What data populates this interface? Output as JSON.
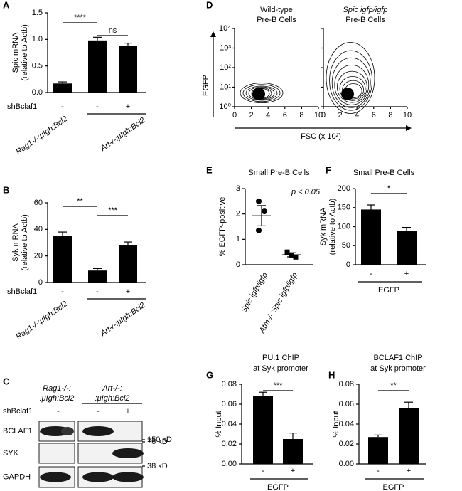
{
  "chart_data": [
    {
      "type": "bar",
      "panel": "A",
      "ylabel": [
        "Spic mRNA",
        "(relative to Actb)"
      ],
      "categories": [
        "-",
        "-",
        "+"
      ],
      "row_label": "shBclaf1",
      "groups": [
        "Rag1-/-:μIgh:Bcl2",
        "Art-/-:μIgh:Bcl2"
      ],
      "values": [
        0.17,
        0.98,
        0.88
      ],
      "errors": [
        0.03,
        0.06,
        0.05
      ],
      "color": "#000000",
      "ylim": [
        0,
        1.5
      ],
      "yticks": [
        {
          "value": 0,
          "label": "0.0"
        },
        {
          "value": 0.5,
          "label": "0.5"
        },
        {
          "value": 1,
          "label": "1.0"
        },
        {
          "value": 1.5,
          "label": "1.5"
        }
      ],
      "annotations": [
        "****",
        "ns"
      ]
    },
    {
      "type": "bar",
      "panel": "B",
      "ylabel": [
        "Syk mRNA",
        "(relative to Actb)"
      ],
      "categories": [
        "-",
        "-",
        "+"
      ],
      "row_label": "shBclaf1",
      "groups": [
        "Rag1-/-:μIgh:Bcl2",
        "Art-/-:μIgh:Bcl2"
      ],
      "values": [
        35,
        9,
        28
      ],
      "errors": [
        3,
        1.5,
        2.5
      ],
      "color": "#000000",
      "ylim": [
        0,
        60
      ],
      "yticks": [
        0,
        20,
        40,
        60
      ],
      "annotations": [
        "**",
        "***"
      ]
    },
    {
      "type": "contour",
      "panel": "D",
      "titles": [
        [
          "Wild-type",
          "Pre-B Cells"
        ],
        [
          "Spic igfp/igfp",
          "Pre-B Cells"
        ]
      ],
      "xlabel": "FSC (x 10²)",
      "ylabel": "EGFP",
      "xlim": [
        0,
        10
      ],
      "xticks": [
        0,
        2,
        4,
        6,
        8,
        10
      ],
      "log": true,
      "ylim": [
        1,
        10000
      ],
      "yticks": [
        {
          "value": 1,
          "label": "10⁰"
        },
        {
          "value": 10,
          "label": "10¹"
        },
        {
          "value": 100,
          "label": "10²"
        },
        {
          "value": 1000,
          "label": "10³"
        },
        {
          "value": 10000,
          "label": "10⁴"
        }
      ]
    },
    {
      "type": "dot",
      "panel": "E",
      "title": "Small Pre-B Cells",
      "annotation": "p < 0.05",
      "ylabel": [
        "% EGFP-positive"
      ],
      "categories": [
        "Spic igfp/igfp",
        "Atm-/-:Spic igfp/igfp"
      ],
      "points": [
        [
          2.5,
          2.1,
          1.35
        ],
        [
          0.5,
          0.3,
          0.38
        ]
      ],
      "means": [
        1.93,
        0.39
      ],
      "errors": [
        0.4,
        0.08
      ],
      "color": "#000000",
      "ylim": [
        0,
        3
      ],
      "yticks": [
        0,
        1,
        2,
        3
      ]
    },
    {
      "type": "bar",
      "panel": "F",
      "title": "Small Pre-B Cells",
      "ylabel": [
        "Syk mRNA",
        "(relative to Actb)"
      ],
      "categories": [
        "-",
        "+"
      ],
      "xlabel": "EGFP",
      "values": [
        145,
        88
      ],
      "errors": [
        12,
        10
      ],
      "color": "#000000",
      "ylim": [
        0,
        200
      ],
      "yticks": [
        0,
        50,
        100,
        150,
        200
      ],
      "annotations": [
        "*"
      ]
    },
    {
      "type": "bar",
      "panel": "G",
      "title": [
        "PU.1 ChIP",
        "at Syk promoter"
      ],
      "ylabel": [
        "% Input"
      ],
      "categories": [
        "-",
        "+"
      ],
      "xlabel": "EGFP",
      "values": [
        0.068,
        0.025
      ],
      "errors": [
        0.004,
        0.006
      ],
      "color": "#000000",
      "ylim": [
        0,
        0.08
      ],
      "yticks": [
        {
          "value": 0,
          "label": "0.00"
        },
        {
          "value": 0.02,
          "label": "0.02"
        },
        {
          "value": 0.04,
          "label": "0.04"
        },
        {
          "value": 0.06,
          "label": "0.06"
        },
        {
          "value": 0.08,
          "label": "0.08"
        }
      ],
      "annotations": [
        "***"
      ]
    },
    {
      "type": "bar",
      "panel": "H",
      "title": [
        "BCLAF1 ChIP",
        "at Syk promoter"
      ],
      "ylabel": [
        "% Input"
      ],
      "categories": [
        "-",
        "+"
      ],
      "xlabel": "EGFP",
      "values": [
        0.027,
        0.056
      ],
      "errors": [
        0.002,
        0.006
      ],
      "color": "#000000",
      "ylim": [
        0,
        0.08
      ],
      "yticks": [
        {
          "value": 0,
          "label": "0.00"
        },
        {
          "value": 0.02,
          "label": "0.02"
        },
        {
          "value": 0.04,
          "label": "0.04"
        },
        {
          "value": 0.06,
          "label": "0.06"
        },
        {
          "value": 0.08,
          "label": "0.08"
        }
      ],
      "annotations": [
        "**"
      ]
    }
  ],
  "blot": {
    "panel": "C",
    "groups": [
      [
        "Rag1-/-:",
        ":μIgh:Bcl2"
      ],
      [
        "Art-/-:",
        ":μIgh:Bcl2"
      ]
    ],
    "row_label": "shBclaf1",
    "lanes": [
      "-",
      "-",
      "+"
    ],
    "proteins": [
      "BCLAF1",
      "SYK",
      "GAPDH"
    ],
    "markers": [
      "150 kD",
      "76 kD",
      "38 kD"
    ]
  }
}
